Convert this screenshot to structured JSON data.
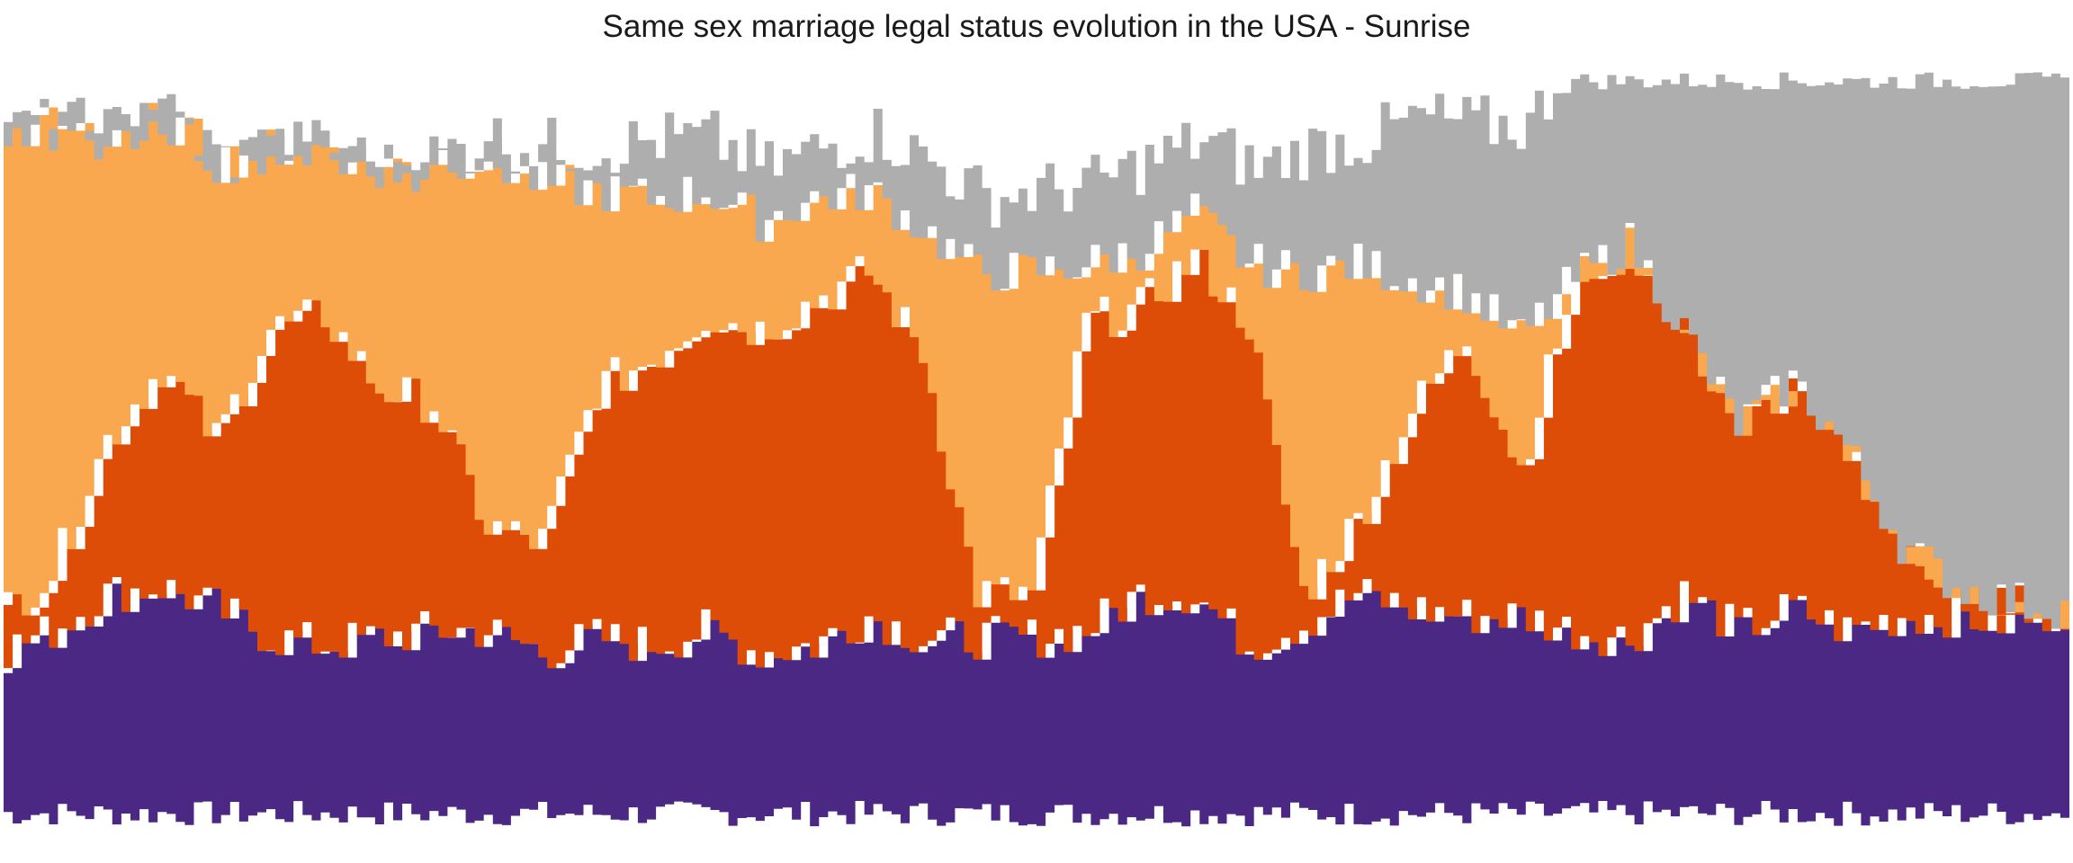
{
  "chart_data": {
    "type": "area",
    "title": "Same sex marriage legal status evolution in the USA - Sunrise",
    "style": "rough streamgraph (sunrise stacked areas)",
    "legend": "none",
    "grid": false,
    "axes": "hidden",
    "xlabel": "",
    "ylabel": "",
    "colors": {
      "purple": "#4b2884",
      "dark_orange": "#de4d07",
      "light_orange": "#f9a84f",
      "gray": "#aeaeae"
    },
    "series": [
      {
        "key": "purple",
        "values": [
          0.22,
          0.25,
          0.3,
          0.31,
          0.28,
          0.24,
          0.23,
          0.24,
          0.25,
          0.25,
          0.22,
          0.24,
          0.23,
          0.25,
          0.22,
          0.23,
          0.27,
          0.24,
          0.24,
          0.24,
          0.25,
          0.3,
          0.3,
          0.23,
          0.26,
          0.3,
          0.28,
          0.27,
          0.27,
          0.25,
          0.24,
          0.3,
          0.25,
          0.28,
          0.25,
          0.27,
          0.27,
          0.26,
          0.28
        ]
      },
      {
        "key": "dark_orange",
        "values": [
          0.05,
          0.08,
          0.21,
          0.3,
          0.23,
          0.42,
          0.45,
          0.34,
          0.31,
          0.14,
          0.15,
          0.34,
          0.39,
          0.43,
          0.44,
          0.47,
          0.47,
          0.39,
          0.06,
          0.06,
          0.42,
          0.39,
          0.46,
          0.44,
          0.04,
          0.1,
          0.27,
          0.38,
          0.2,
          0.48,
          0.54,
          0.36,
          0.28,
          0.31,
          0.25,
          0.1,
          0.04,
          0.03,
          0.0
        ]
      },
      {
        "key": "light_orange",
        "values": [
          0.66,
          0.61,
          0.42,
          0.34,
          0.38,
          0.25,
          0.23,
          0.3,
          0.34,
          0.5,
          0.49,
          0.27,
          0.22,
          0.17,
          0.15,
          0.14,
          0.11,
          0.17,
          0.44,
          0.44,
          0.08,
          0.08,
          0.06,
          0.08,
          0.44,
          0.35,
          0.18,
          0.06,
          0.18,
          0.0,
          0.0,
          0.0,
          0.0,
          0.0,
          0.0,
          0.0,
          0.0,
          0.0,
          0.0
        ]
      },
      {
        "key": "gray",
        "values": [
          0.0,
          0.0,
          0.0,
          0.0,
          0.0,
          0.0,
          0.0,
          0.0,
          0.0,
          0.03,
          0.05,
          0.06,
          0.08,
          0.07,
          0.07,
          0.07,
          0.08,
          0.09,
          0.1,
          0.11,
          0.11,
          0.12,
          0.1,
          0.13,
          0.17,
          0.17,
          0.22,
          0.23,
          0.29,
          0.33,
          0.28,
          0.4,
          0.53,
          0.45,
          0.55,
          0.68,
          0.72,
          0.76,
          0.8
        ]
      }
    ]
  }
}
